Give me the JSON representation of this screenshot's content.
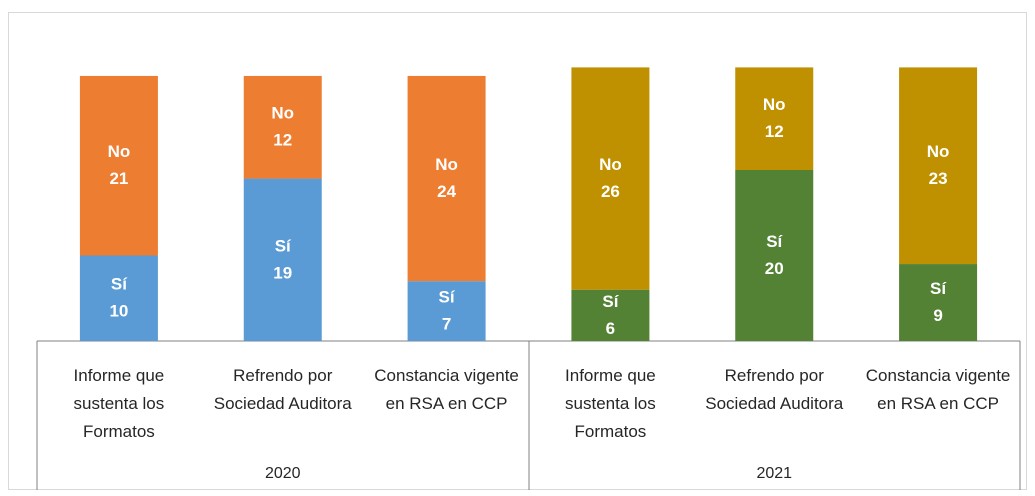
{
  "chart_data": {
    "type": "bar",
    "stacked": true,
    "groups": [
      {
        "label": "2020",
        "categories": [
          "Informe que sustenta los Formatos",
          "Refrendo por Sociedad Auditora",
          "Constancia vigente en RSA en CCP"
        ],
        "series": [
          {
            "name": "Sí",
            "color": "#5b9bd5",
            "values": [
              10,
              19,
              7
            ]
          },
          {
            "name": "No",
            "color": "#ed7d31",
            "values": [
              21,
              12,
              24
            ]
          }
        ]
      },
      {
        "label": "2021",
        "categories": [
          "Informe que sustenta los Formatos",
          "Refrendo por Sociedad Auditora",
          "Constancia vigente en RSA en CCP"
        ],
        "series": [
          {
            "name": "Sí",
            "color": "#548235",
            "values": [
              6,
              20,
              9
            ]
          },
          {
            "name": "No",
            "color": "#bf9000",
            "values": [
              26,
              12,
              23
            ]
          }
        ]
      }
    ]
  }
}
